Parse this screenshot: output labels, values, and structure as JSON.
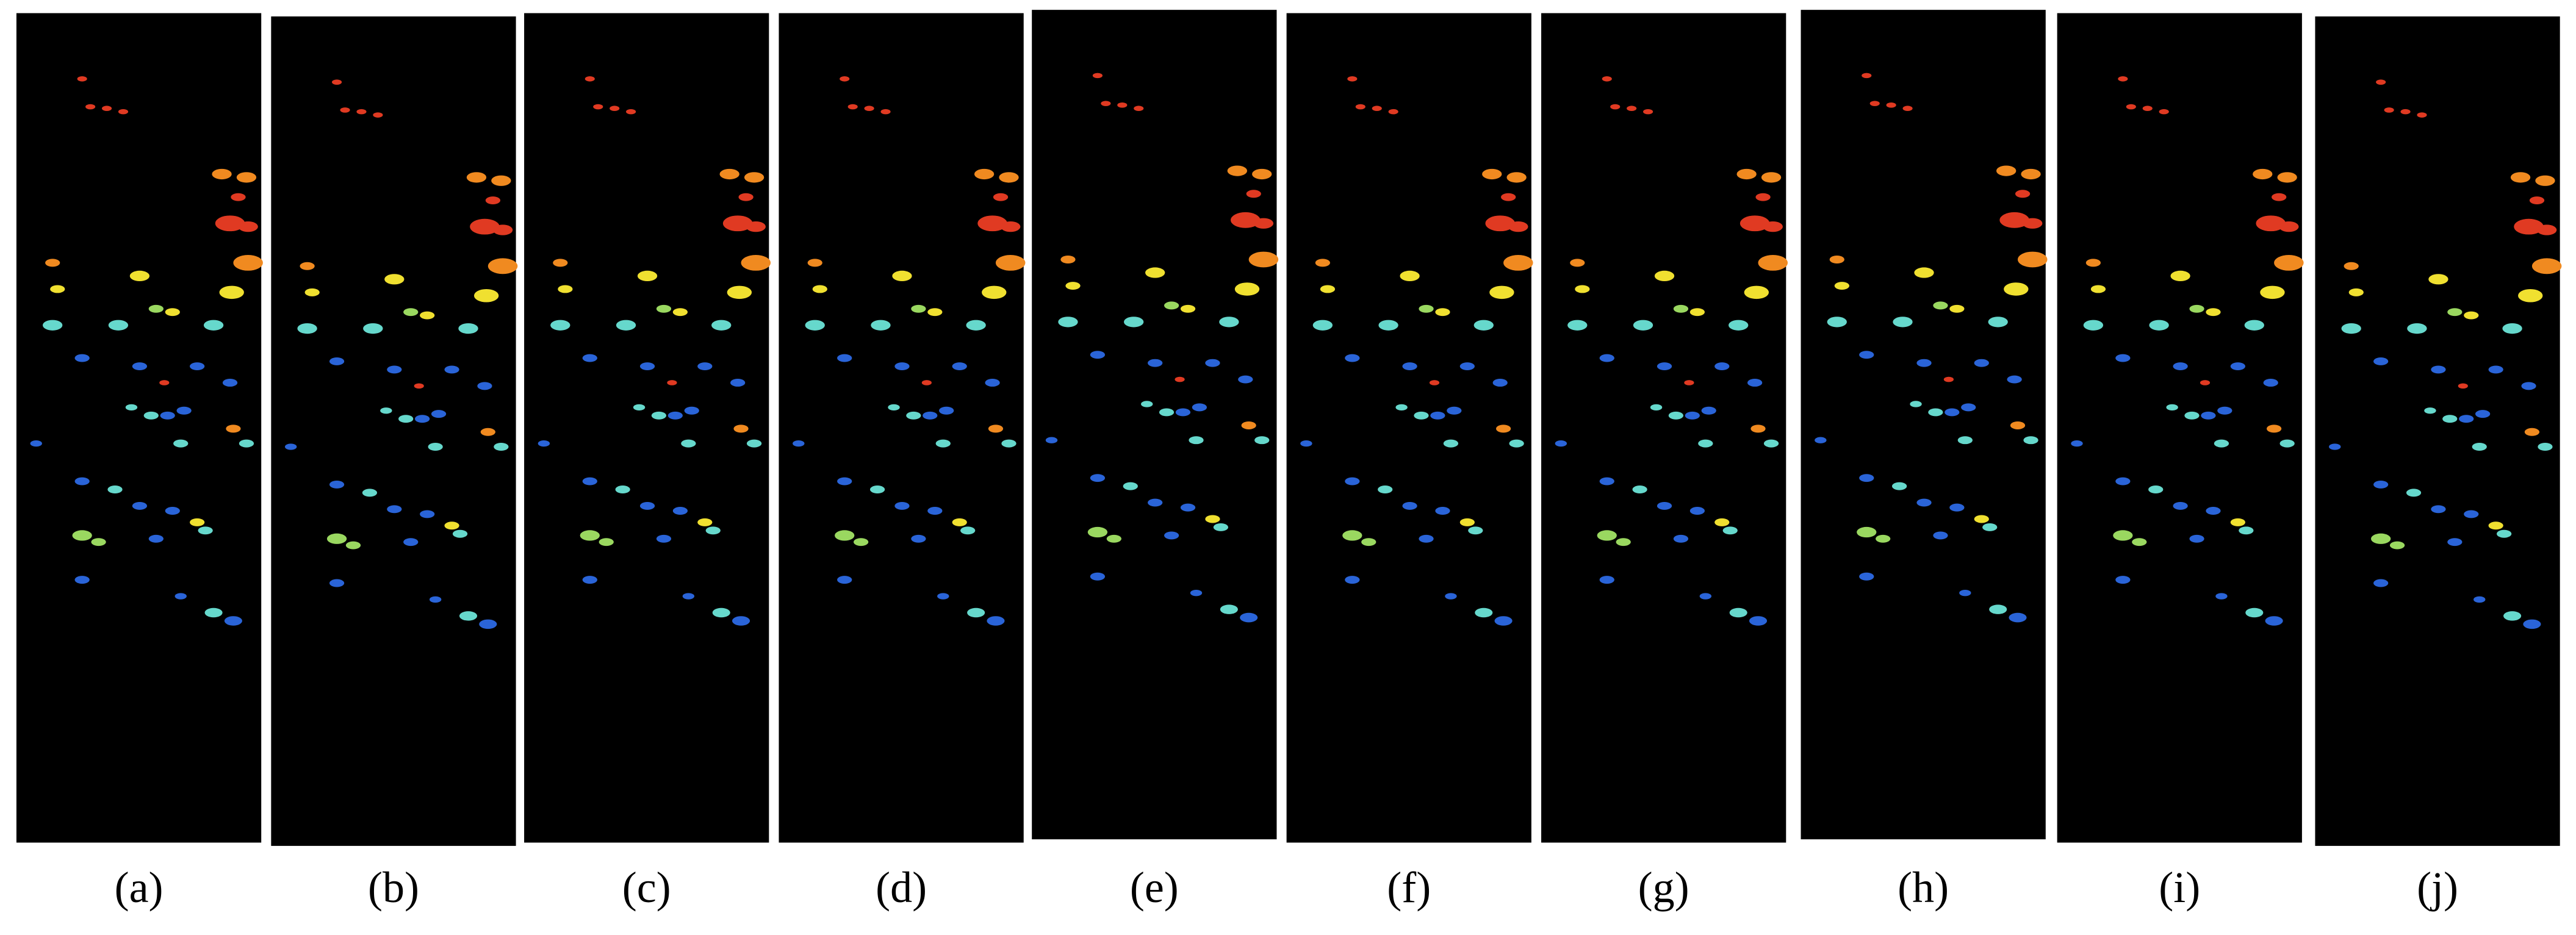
{
  "figure": {
    "panels": [
      "(a)",
      "(b)",
      "(c)",
      "(d)",
      "(e)",
      "(f)",
      "(g)",
      "(h)",
      "(i)",
      "(j)"
    ]
  }
}
